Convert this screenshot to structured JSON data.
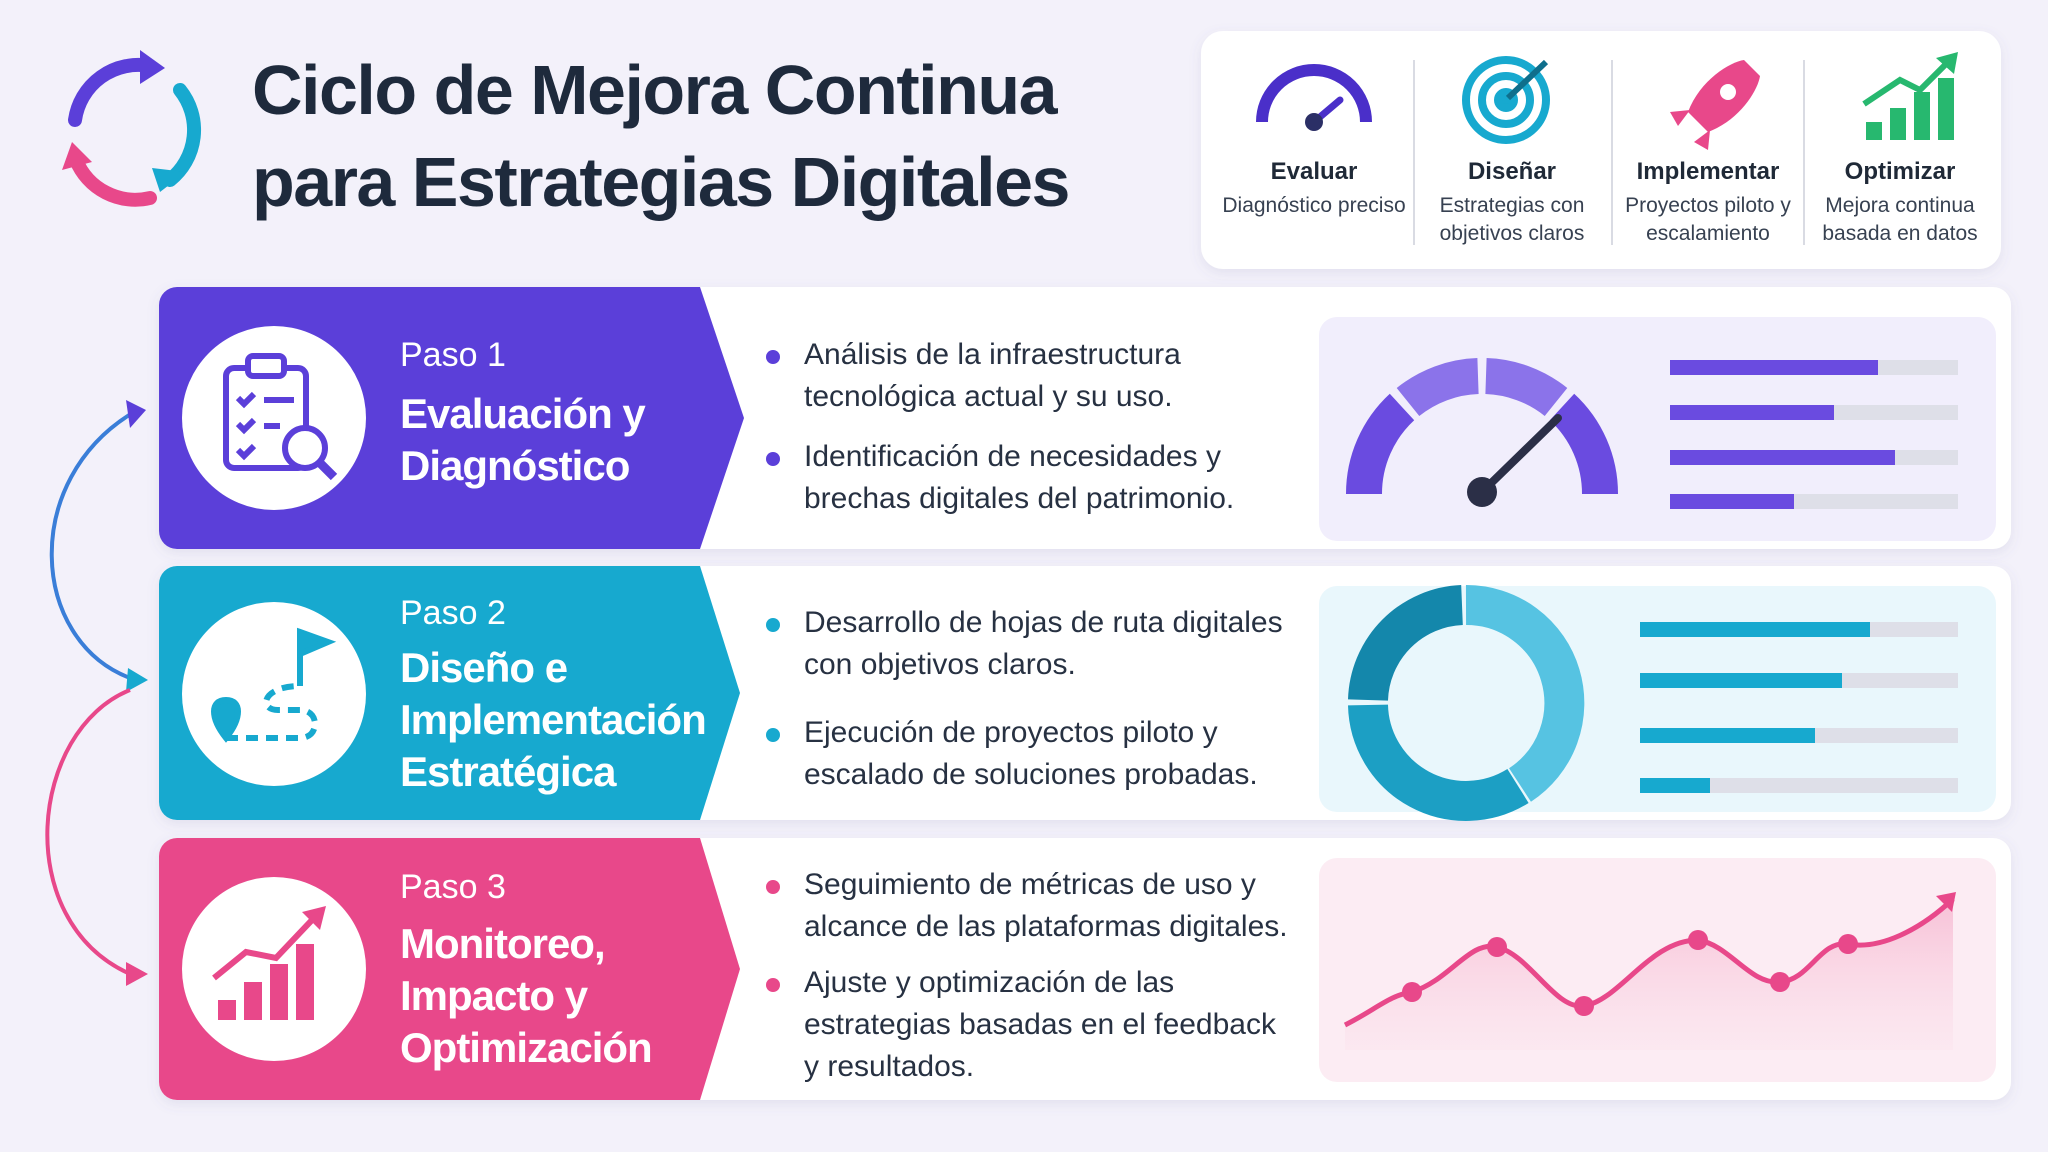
{
  "header": {
    "title": "Ciclo de Mejora Continua para Estrategias Digitales"
  },
  "phases": [
    {
      "title": "Evaluar",
      "description": "Diagnóstico preciso"
    },
    {
      "title": "Diseñar",
      "description": "Estrategias con objetivos claros"
    },
    {
      "title": "Implementar",
      "description": "Proyectos piloto y escalamiento"
    },
    {
      "title": "Optimizar",
      "description": "Mejora continua basada en datos"
    }
  ],
  "steps": [
    {
      "label": "Paso 1",
      "title": "Evaluación y Diagnóstico",
      "bullets": [
        "Análisis de la infraestructura tecnológica actual y su uso.",
        "Identificación de necesidades y brechas digitales del patrimonio."
      ]
    },
    {
      "label": "Paso 2",
      "title": "Diseño e Implementación Estratégica",
      "bullets": [
        "Desarrollo de hojas de ruta digitales con objetivos claros.",
        "Ejecución de proyectos piloto y escalado de soluciones probadas."
      ]
    },
    {
      "label": "Paso 3",
      "title": "Monitoreo, Impacto y Optimización",
      "bullets": [
        "Seguimiento de métricas de uso y alcance de las plataformas digitales.",
        "Ajuste y optimización de las estrategias basadas en el feedback y resultados."
      ]
    }
  ]
}
